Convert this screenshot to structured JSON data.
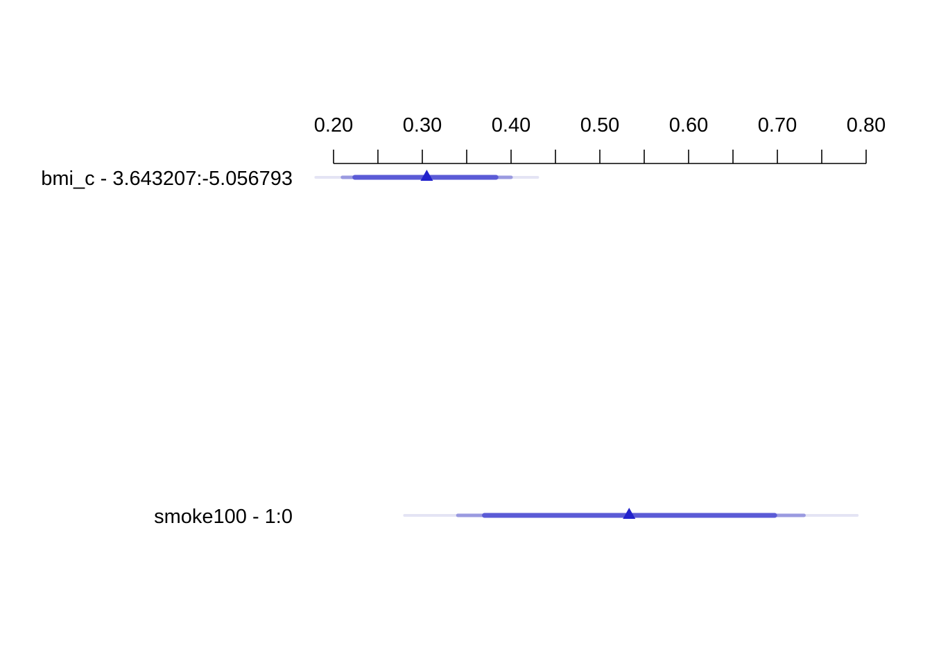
{
  "chart_data": {
    "type": "forest",
    "title": "",
    "xlabel": "",
    "ylabel": "",
    "x_axis_position": "top",
    "xlim": [
      0.2,
      0.8
    ],
    "major_ticks": [
      0.2,
      0.3,
      0.4,
      0.5,
      0.6,
      0.7,
      0.8
    ],
    "tick_labels": [
      "0.20",
      "0.30",
      "0.40",
      "0.50",
      "0.60",
      "0.70",
      "0.80"
    ],
    "minor_ticks": [
      0.25,
      0.35,
      0.45,
      0.55,
      0.65,
      0.75
    ],
    "grid": false,
    "legend": "none",
    "rows": [
      {
        "label": "bmi_c - 3.643207:-5.056793",
        "estimate": 0.305,
        "ci_outer": [
          0.18,
          0.43
        ],
        "ci_middle": [
          0.21,
          0.4
        ],
        "ci_inner": [
          0.224,
          0.383
        ]
      },
      {
        "label": "smoke100 - 1:0",
        "estimate": 0.533,
        "ci_outer": [
          0.28,
          0.79
        ],
        "ci_middle": [
          0.34,
          0.73
        ],
        "ci_inner": [
          0.37,
          0.697
        ]
      }
    ],
    "colors": {
      "marker": "#2222cc",
      "inner": "#5b5bd6",
      "middle": "#9a9ae0",
      "outer": "#e4e4f4",
      "axis": "#000000"
    }
  }
}
